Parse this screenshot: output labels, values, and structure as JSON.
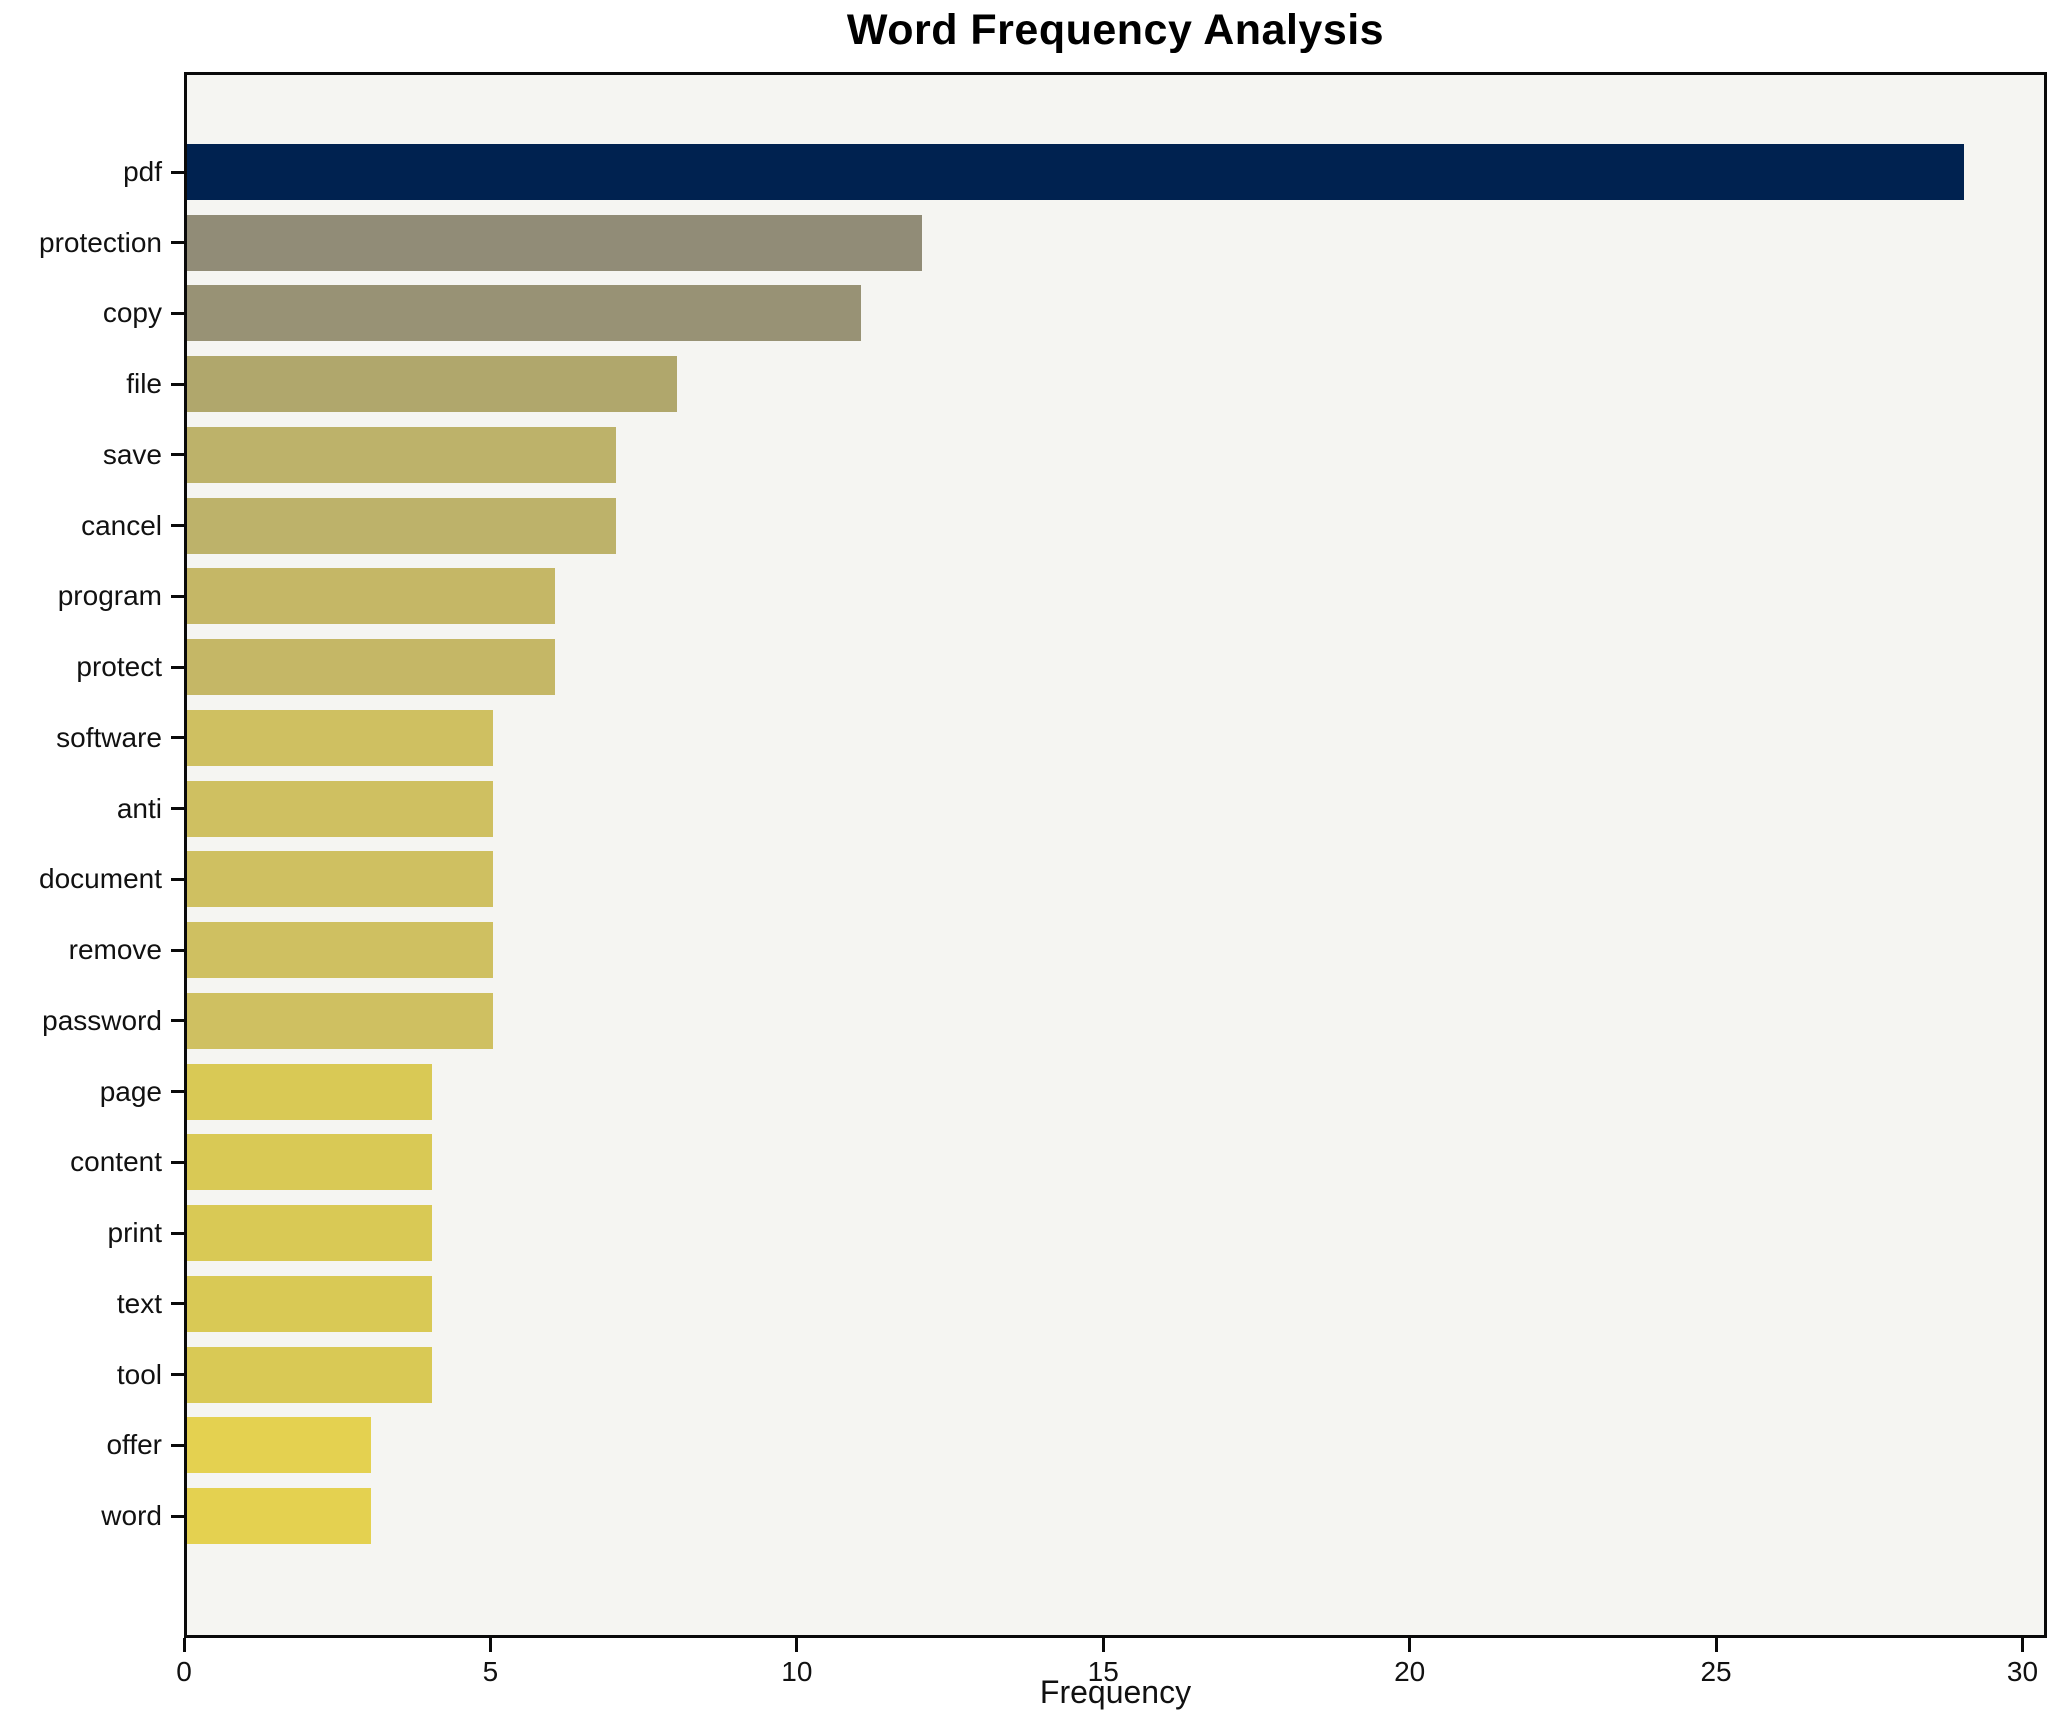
{
  "chart_data": {
    "type": "bar",
    "orientation": "horizontal",
    "title": "Word Frequency Analysis",
    "xlabel": "Frequency",
    "ylabel": "",
    "categories": [
      "pdf",
      "protection",
      "copy",
      "file",
      "save",
      "cancel",
      "program",
      "protect",
      "software",
      "anti",
      "document",
      "remove",
      "password",
      "page",
      "content",
      "print",
      "text",
      "tool",
      "offer",
      "word"
    ],
    "values": [
      29,
      12,
      11,
      8,
      7,
      7,
      6,
      6,
      5,
      5,
      5,
      5,
      5,
      4,
      4,
      4,
      4,
      4,
      3,
      3
    ],
    "bar_colors": [
      "#002250",
      "#918c77",
      "#989275",
      "#b0a76c",
      "#bdb26a",
      "#bdb26a",
      "#c5b766",
      "#c5b766",
      "#cfc061",
      "#cfc061",
      "#cfc061",
      "#cfc061",
      "#cfc061",
      "#d9c955",
      "#d9c955",
      "#d9c955",
      "#d9c955",
      "#d9c955",
      "#e4d150",
      "#e4d150"
    ],
    "xticks": [
      0,
      5,
      10,
      15,
      20,
      25,
      30
    ],
    "xlim": [
      0,
      30.4
    ],
    "grid": false,
    "legend": null,
    "plot_bg": "#f5f5f2",
    "figure_bg": "#ffffff",
    "spine_color": "#0a0a0a",
    "text_color": "#111111"
  }
}
